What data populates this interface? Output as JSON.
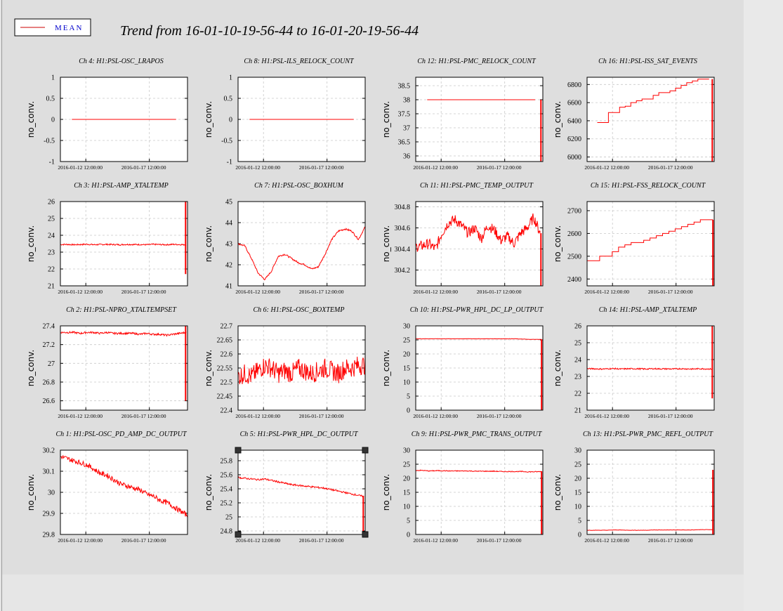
{
  "title": "Trend from 16-01-10-19-56-44 to 16-01-20-19-56-44",
  "legend": {
    "label": "MEAN",
    "line_color": "#cc0000",
    "text_color": "#0000cc"
  },
  "colors": {
    "series": "#ff0000",
    "plot_bg": "#ffffff",
    "figure_bg": "#dedede",
    "grid": "#c8c8c8"
  },
  "chart_data": [
    {
      "type": "line",
      "title": "Ch 4: H1:PSL-OSC_LRAPOS",
      "ylabel": "no_conv.",
      "ylim": [
        -1,
        1
      ],
      "yticks": [
        -1,
        -0.5,
        0,
        0.5,
        1
      ],
      "xticks": [
        "2016-01-12 12:00:00",
        "2016-01-17 12:00:00"
      ],
      "grid": true,
      "series": [
        {
          "values": [
            0,
            0,
            0,
            0,
            0,
            0,
            0,
            0,
            0,
            0,
            0,
            0,
            0,
            0,
            0,
            0,
            0,
            0,
            0,
            0
          ],
          "x_start": 0.09,
          "x_end": 0.91
        }
      ]
    },
    {
      "type": "line",
      "title": "Ch 8: H1:PSL-ILS_RELOCK_COUNT",
      "ylabel": "no_conv.",
      "ylim": [
        -1,
        1
      ],
      "yticks": [
        -1,
        -0.5,
        0,
        0.5,
        1
      ],
      "xticks": [
        "2016-01-12 12:00:00",
        "2016-01-17 12:00:00"
      ],
      "grid": true,
      "series": [
        {
          "values": [
            0,
            0,
            0,
            0,
            0,
            0,
            0,
            0,
            0,
            0,
            0,
            0,
            0,
            0,
            0,
            0,
            0,
            0,
            0,
            0
          ],
          "x_start": 0.09,
          "x_end": 0.91
        }
      ]
    },
    {
      "type": "line",
      "title": "Ch 12: H1:PSL-PMC_RELOCK_COUNT",
      "ylabel": "no_conv.",
      "ylim": [
        35.8,
        38.8
      ],
      "yticks": [
        36,
        36.5,
        37,
        37.5,
        38,
        38.5
      ],
      "xticks": [
        "2016-01-12 12:00:00",
        "2016-01-17 12:00:00"
      ],
      "grid": true,
      "series": [
        {
          "values": [
            38,
            38,
            38,
            38,
            38,
            38,
            38,
            38,
            38,
            38,
            38,
            38,
            38,
            38,
            38,
            38,
            38,
            38,
            38,
            38
          ],
          "x_start": 0.09,
          "x_end": 0.94
        }
      ],
      "spikes": [
        {
          "x": 0.985,
          "min": 35.8,
          "max": 38
        }
      ]
    },
    {
      "type": "line",
      "title": "Ch 16: H1:PSL-ISS_SAT_EVENTS",
      "ylabel": "no_conv.",
      "ylim": [
        5950,
        6880
      ],
      "yticks": [
        6000,
        6200,
        6400,
        6600,
        6800
      ],
      "xticks": [
        "2016-01-12 12:00:00",
        "2016-01-17 12:00:00"
      ],
      "grid": true,
      "step": true,
      "series": [
        {
          "values": [
            6380,
            6380,
            6490,
            6490,
            6550,
            6560,
            6600,
            6620,
            6640,
            6640,
            6680,
            6710,
            6710,
            6730,
            6760,
            6790,
            6820,
            6840,
            6860,
            6860
          ],
          "x_start": 0.08,
          "x_end": 0.96
        }
      ],
      "spikes": [
        {
          "x": 0.985,
          "min": 5950,
          "max": 6860
        }
      ]
    },
    {
      "type": "line",
      "title": "Ch 3: H1:PSL-AMP_XTALTEMP",
      "ylabel": "no_conv.",
      "ylim": [
        21,
        26
      ],
      "yticks": [
        21,
        22,
        23,
        24,
        25,
        26
      ],
      "xticks": [
        "2016-01-12 12:00:00",
        "2016-01-17 12:00:00"
      ],
      "grid": true,
      "series": [
        {
          "values": [
            23.45,
            23.46,
            23.44,
            23.45,
            23.47,
            23.44,
            23.45,
            23.46,
            23.45,
            23.44,
            23.46,
            23.45,
            23.45,
            23.44,
            23.46,
            23.45,
            23.44,
            23.46,
            23.45,
            23.44
          ],
          "x_start": 0.0,
          "x_end": 0.99,
          "noise": 0.04
        }
      ],
      "spikes": [
        {
          "x": 0.985,
          "min": 21.7,
          "max": 26
        }
      ]
    },
    {
      "type": "line",
      "title": "Ch 7: H1:PSL-OSC_BOXHUM",
      "ylabel": "no_conv.",
      "ylim": [
        41,
        45
      ],
      "yticks": [
        41,
        42,
        43,
        44,
        45
      ],
      "xticks": [
        "2016-01-12 12:00:00",
        "2016-01-17 12:00:00"
      ],
      "grid": true,
      "series": [
        {
          "values": [
            43.0,
            42.9,
            42.3,
            41.6,
            41.3,
            41.7,
            42.4,
            42.5,
            42.3,
            42.1,
            42.0,
            41.8,
            41.9,
            42.5,
            43.2,
            43.6,
            43.7,
            43.6,
            43.2,
            43.8
          ],
          "x_start": 0.0,
          "x_end": 1.0,
          "noise": 0.04
        }
      ]
    },
    {
      "type": "line",
      "title": "Ch 11: H1:PSL-PMC_TEMP_OUTPUT",
      "ylabel": "no_conv.",
      "ylim": [
        304.05,
        304.85
      ],
      "yticks": [
        304.2,
        304.4,
        304.6,
        304.8
      ],
      "xticks": [
        "2016-01-12 12:00:00",
        "2016-01-17 12:00:00"
      ],
      "grid": true,
      "series": [
        {
          "values": [
            304.42,
            304.43,
            304.45,
            304.4,
            304.55,
            304.65,
            304.68,
            304.62,
            304.55,
            304.6,
            304.5,
            304.62,
            304.58,
            304.48,
            304.52,
            304.45,
            304.55,
            304.6,
            304.7,
            304.55
          ],
          "x_start": 0.0,
          "x_end": 0.98,
          "noise": 0.05
        }
      ],
      "spikes": [
        {
          "x": 0.985,
          "min": 304.05,
          "max": 304.55
        }
      ]
    },
    {
      "type": "line",
      "title": "Ch 15: H1:PSL-FSS_RELOCK_COUNT",
      "ylabel": "no_conv.",
      "ylim": [
        2370,
        2740
      ],
      "yticks": [
        2400,
        2500,
        2600,
        2700
      ],
      "xticks": [
        "2016-01-12 12:00:00",
        "2016-01-17 12:00:00"
      ],
      "grid": true,
      "step": true,
      "series": [
        {
          "values": [
            2480,
            2480,
            2500,
            2500,
            2520,
            2540,
            2550,
            2560,
            2560,
            2570,
            2580,
            2590,
            2600,
            2610,
            2620,
            2630,
            2640,
            2650,
            2660,
            2660
          ],
          "x_start": 0.0,
          "x_end": 0.99
        }
      ],
      "spikes": [
        {
          "x": 0.99,
          "min": 2370,
          "max": 2660
        }
      ]
    },
    {
      "type": "line",
      "title": "Ch 2: H1:PSL-NPRO_XTALTEMPSET",
      "ylabel": "no_conv.",
      "ylim": [
        26.5,
        27.4
      ],
      "yticks": [
        26.6,
        26.8,
        27,
        27.2,
        27.4
      ],
      "xticks": [
        "2016-01-12 12:00:00",
        "2016-01-17 12:00:00"
      ],
      "grid": true,
      "series": [
        {
          "values": [
            27.33,
            27.33,
            27.33,
            27.32,
            27.33,
            27.33,
            27.32,
            27.33,
            27.32,
            27.32,
            27.32,
            27.32,
            27.31,
            27.32,
            27.31,
            27.31,
            27.3,
            27.31,
            27.32,
            27.33
          ],
          "x_start": 0.0,
          "x_end": 0.99,
          "noise": 0.01
        }
      ],
      "spikes": [
        {
          "x": 0.985,
          "min": 26.6,
          "max": 27.4
        }
      ]
    },
    {
      "type": "line",
      "title": "Ch 6: H1:PSL-OSC_BOXTEMP",
      "ylabel": "no_conv.",
      "ylim": [
        22.4,
        22.7
      ],
      "yticks": [
        22.4,
        22.45,
        22.5,
        22.55,
        22.6,
        22.65,
        22.7
      ],
      "xticks": [
        "2016-01-12 12:00:00",
        "2016-01-17 12:00:00"
      ],
      "grid": true,
      "series": [
        {
          "values": [
            22.52,
            22.53,
            22.52,
            22.54,
            22.56,
            22.55,
            22.53,
            22.54,
            22.53,
            22.55,
            22.54,
            22.53,
            22.54,
            22.55,
            22.54,
            22.53,
            22.55,
            22.55,
            22.56,
            22.56
          ],
          "x_start": 0.0,
          "x_end": 1.0,
          "noise": 0.035
        }
      ]
    },
    {
      "type": "line",
      "title": "Ch 10: H1:PSL-PWR_HPL_DC_LP_OUTPUT",
      "ylabel": "no_conv.",
      "ylim": [
        0,
        30
      ],
      "yticks": [
        0,
        5,
        10,
        15,
        20,
        25,
        30
      ],
      "xticks": [
        "2016-01-12 12:00:00",
        "2016-01-17 12:00:00"
      ],
      "grid": true,
      "series": [
        {
          "values": [
            25.4,
            25.4,
            25.4,
            25.4,
            25.4,
            25.4,
            25.4,
            25.4,
            25.4,
            25.4,
            25.4,
            25.4,
            25.4,
            25.4,
            25.4,
            25.4,
            25.3,
            25.2,
            25.2,
            25.2
          ],
          "x_start": 0.0,
          "x_end": 0.99,
          "noise": 0.05
        }
      ],
      "spikes": [
        {
          "x": 0.99,
          "min": 0,
          "max": 25.2
        }
      ]
    },
    {
      "type": "line",
      "title": "Ch 14: H1:PSL-AMP_XTALTEMP",
      "ylabel": "no_conv.",
      "ylim": [
        21,
        26
      ],
      "yticks": [
        21,
        22,
        23,
        24,
        25,
        26
      ],
      "xticks": [
        "2016-01-12 12:00:00",
        "2016-01-17 12:00:00"
      ],
      "grid": true,
      "series": [
        {
          "values": [
            23.45,
            23.46,
            23.44,
            23.45,
            23.47,
            23.44,
            23.45,
            23.46,
            23.45,
            23.44,
            23.46,
            23.45,
            23.45,
            23.44,
            23.46,
            23.45,
            23.44,
            23.46,
            23.45,
            23.44
          ],
          "x_start": 0.0,
          "x_end": 0.99,
          "noise": 0.04
        }
      ],
      "spikes": [
        {
          "x": 0.985,
          "min": 21.7,
          "max": 26
        }
      ]
    },
    {
      "type": "line",
      "title": "Ch 1: H1:PSL-OSC_PD_AMP_DC_OUTPUT",
      "ylabel": "no_conv.",
      "ylim": [
        29.8,
        30.2
      ],
      "yticks": [
        29.8,
        29.9,
        30,
        30.1,
        30.2
      ],
      "xticks": [
        "2016-01-12 12:00:00",
        "2016-01-17 12:00:00"
      ],
      "grid": true,
      "series": [
        {
          "values": [
            30.17,
            30.16,
            30.15,
            30.14,
            30.13,
            30.11,
            30.09,
            30.08,
            30.06,
            30.04,
            30.03,
            30.02,
            30.01,
            29.99,
            29.98,
            29.96,
            29.95,
            29.93,
            29.91,
            29.89
          ],
          "x_start": 0.0,
          "x_end": 1.0,
          "noise": 0.012
        }
      ]
    },
    {
      "type": "line",
      "title": "Ch 5: H1:PSL-PWR_HPL_DC_OUTPUT",
      "ylabel": "no_conv.",
      "ylim": [
        24.75,
        25.95
      ],
      "yticks": [
        24.8,
        25,
        25.2,
        25.4,
        25.6,
        25.8
      ],
      "xticks": [
        "2016-01-12 12:00:00",
        "2016-01-17 12:00:00"
      ],
      "grid": true,
      "selected": true,
      "series": [
        {
          "values": [
            25.56,
            25.55,
            25.54,
            25.53,
            25.54,
            25.52,
            25.5,
            25.48,
            25.46,
            25.45,
            25.44,
            25.43,
            25.42,
            25.41,
            25.39,
            25.37,
            25.35,
            25.33,
            25.31,
            25.29
          ],
          "x_start": 0.0,
          "x_end": 0.99,
          "noise": 0.012
        }
      ],
      "spikes": [
        {
          "x": 0.985,
          "min": 24.8,
          "max": 25.3
        }
      ]
    },
    {
      "type": "line",
      "title": "Ch 9: H1:PSL-PWR_PMC_TRANS_OUTPUT",
      "ylabel": "no_conv.",
      "ylim": [
        0,
        30
      ],
      "yticks": [
        0,
        5,
        10,
        15,
        20,
        25,
        30
      ],
      "xticks": [
        "2016-01-12 12:00:00",
        "2016-01-17 12:00:00"
      ],
      "grid": true,
      "series": [
        {
          "values": [
            22.8,
            22.8,
            22.6,
            22.7,
            22.7,
            22.6,
            22.6,
            22.6,
            22.6,
            22.5,
            22.5,
            22.5,
            22.5,
            22.4,
            22.4,
            22.4,
            22.4,
            22.3,
            22.3,
            22.4
          ],
          "x_start": 0.0,
          "x_end": 0.99,
          "noise": 0.15
        }
      ],
      "spikes": [
        {
          "x": 0.99,
          "min": 0,
          "max": 22.5
        }
      ]
    },
    {
      "type": "line",
      "title": "Ch 13: H1:PSL-PWR_PMC_REFL_OUTPUT",
      "ylabel": "no_conv.",
      "ylim": [
        0,
        30
      ],
      "yticks": [
        0,
        5,
        10,
        15,
        20,
        25,
        30
      ],
      "xticks": [
        "2016-01-12 12:00:00",
        "2016-01-17 12:00:00"
      ],
      "grid": true,
      "series": [
        {
          "values": [
            1.5,
            1.5,
            1.5,
            1.5,
            1.6,
            1.6,
            1.5,
            1.5,
            1.5,
            1.5,
            1.6,
            1.6,
            1.6,
            1.6,
            1.6,
            1.6,
            1.6,
            1.7,
            1.7,
            1.7
          ],
          "x_start": 0.0,
          "x_end": 0.99,
          "noise": 0.05
        }
      ],
      "spikes": [
        {
          "x": 0.99,
          "min": 0,
          "max": 23
        }
      ]
    }
  ]
}
